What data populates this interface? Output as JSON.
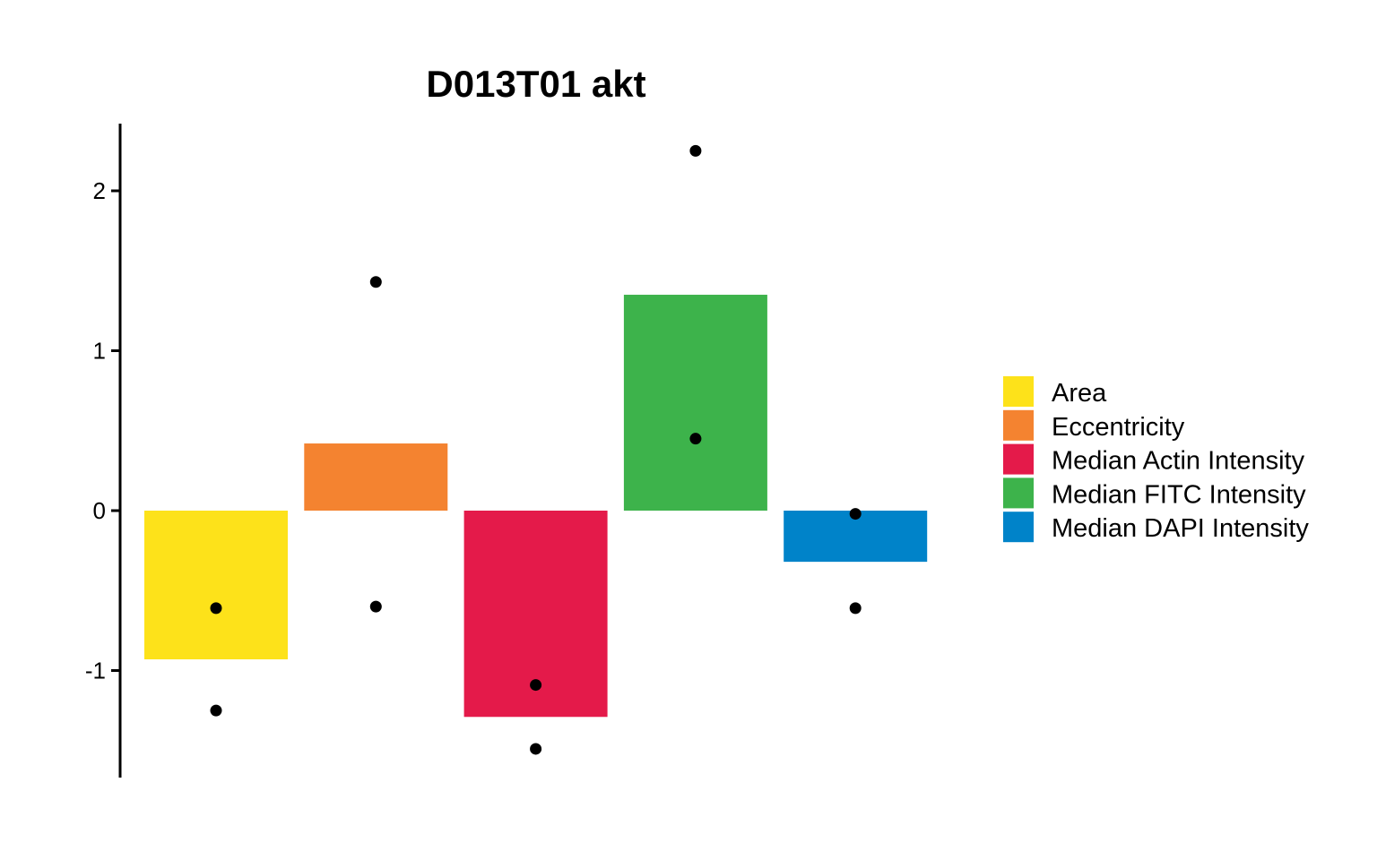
{
  "chart_data": {
    "type": "bar",
    "title": "D013T01 akt",
    "xlabel": "",
    "ylabel": "",
    "ylim": [
      -1.67,
      2.43
    ],
    "yticks": [
      2,
      1,
      0,
      -1
    ],
    "ytick_labels": [
      "2",
      "1",
      "0",
      "-1"
    ],
    "grid": false,
    "legend_position": "right",
    "categories": [
      "Area",
      "Eccentricity",
      "Median Actin Intensity",
      "Median FITC Intensity",
      "Median DAPI Intensity"
    ],
    "values": [
      -0.93,
      0.42,
      -1.29,
      1.35,
      -0.32
    ],
    "colors": [
      "#FDE21A",
      "#F48330",
      "#E41A4A",
      "#3DB34B",
      "#0083C9"
    ],
    "points": [
      [
        -0.61,
        -1.25
      ],
      [
        1.43,
        -0.6
      ],
      [
        -1.09,
        -1.49
      ],
      [
        2.25,
        0.45
      ],
      [
        -0.02,
        -0.61
      ]
    ]
  }
}
